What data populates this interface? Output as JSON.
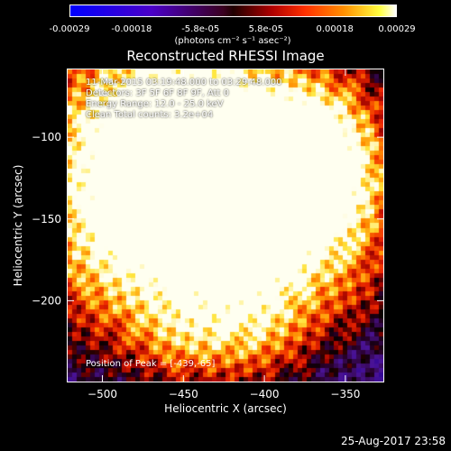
{
  "chart_data": {
    "type": "heatmap",
    "title": "Reconstructed RHESSI Image",
    "xlabel": "Heliocentric X (arcsec)",
    "ylabel": "Heliocentric Y (arcsec)",
    "xlim": [
      -522,
      -326
    ],
    "ylim": [
      -250,
      -58
    ],
    "xticks": [
      -500,
      -450,
      -400,
      -350
    ],
    "yticks": [
      -100,
      -150,
      -200
    ],
    "colorbar": {
      "ticks": [
        "-0.00029",
        "-0.00018",
        "-5.8e-05",
        "5.8e-05",
        "0.00018",
        "0.00029"
      ],
      "tick_values": [
        -0.00029,
        -0.00018,
        -5.8e-05,
        5.8e-05,
        0.00018,
        0.00029
      ],
      "range": [
        -0.00029,
        0.00029
      ],
      "unit": "(photons cm⁻² s⁻¹ asec⁻²)"
    },
    "info_lines": [
      "11-Mar-2015 03:19:48.000 to 03:29:48.000",
      "Detectors: 3F 5F 6F 8F 9F, Att 0",
      "Energy Range: 12.0 - 25.0 keV",
      "Clean     Total counts: 3.2e+04"
    ],
    "peak_label": "Position of Peak = [-439,-65]",
    "peak": [
      -439,
      -65
    ]
  },
  "footer": {
    "timestamp": "25-Aug-2017 23:58"
  }
}
